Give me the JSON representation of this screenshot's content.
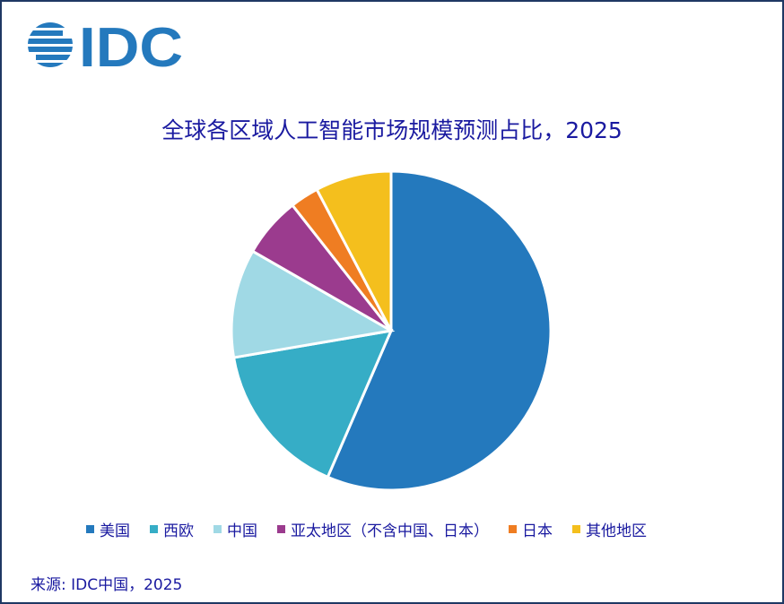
{
  "logo": {
    "text": "IDC",
    "color": "#2479bd"
  },
  "source": "来源: IDC中国，2025",
  "chart_data": {
    "type": "pie",
    "title": "全球各区域人工智能市场规模预测占比，2025",
    "legend_position": "bottom",
    "slices": [
      {
        "name": "美国",
        "value": 56.5,
        "color": "#2479bd"
      },
      {
        "name": "西欧",
        "value": 15.8,
        "color": "#36adc6"
      },
      {
        "name": "中国",
        "value": 11.0,
        "color": "#a0d9e5"
      },
      {
        "name": "亚太地区（不含中国、日本）",
        "value": 6.1,
        "color": "#9b3b8e"
      },
      {
        "name": "日本",
        "value": 2.9,
        "color": "#ef7d22"
      },
      {
        "name": "其他地区",
        "value": 7.7,
        "color": "#f4bf1d"
      }
    ]
  }
}
